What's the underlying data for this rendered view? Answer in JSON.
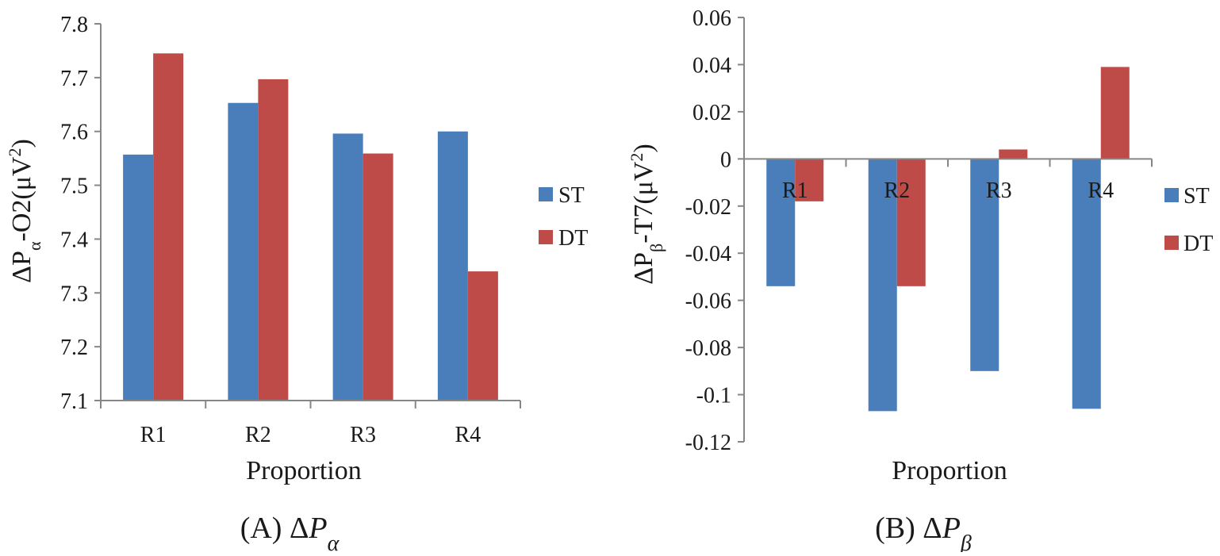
{
  "colors": {
    "ST": "#4a7ebb",
    "DT": "#be4b48",
    "axis": "#868686"
  },
  "legend": [
    {
      "label": "ST",
      "color": "#4a7ebb"
    },
    {
      "label": "DT",
      "color": "#be4b48"
    }
  ],
  "chart_data": [
    {
      "type": "bar",
      "caption_prefix": "(A) Δ",
      "caption_symbol": "P",
      "caption_sub": "α",
      "ylabel": {
        "base": "ΔP",
        "sub": "α",
        "rest": "-O2(μV",
        "sup": "2",
        "close": ")"
      },
      "xlabel": "Proportion",
      "categories": [
        "R1",
        "R2",
        "R3",
        "R4"
      ],
      "yticks": [
        "7.8",
        "7.7",
        "7.6",
        "7.5",
        "7.4",
        "7.3",
        "7.2",
        "7.1"
      ],
      "ylim": [
        7.1,
        7.8
      ],
      "series": [
        {
          "name": "ST",
          "values": [
            7.557,
            7.653,
            7.596,
            7.6
          ]
        },
        {
          "name": "DT",
          "values": [
            7.745,
            7.697,
            7.559,
            7.34
          ]
        }
      ],
      "legend_position": "right"
    },
    {
      "type": "bar",
      "caption_prefix": "(B) Δ",
      "caption_symbol": "P",
      "caption_sub": "β",
      "ylabel": {
        "base": "ΔP",
        "sub": "β",
        "rest": "-T7(μV",
        "sup": "2",
        "close": ")"
      },
      "xlabel": "Proportion",
      "categories": [
        "R1",
        "R2",
        "R3",
        "R4"
      ],
      "yticks": [
        "0.06",
        "0.04",
        "0.02",
        "0",
        "-0.02",
        "-0.04",
        "-0.06",
        "-0.08",
        "-0.1",
        "-0.12"
      ],
      "ylim": [
        -0.12,
        0.06
      ],
      "series": [
        {
          "name": "ST",
          "values": [
            -0.054,
            -0.107,
            -0.09,
            -0.106
          ]
        },
        {
          "name": "DT",
          "values": [
            -0.018,
            -0.054,
            0.004,
            0.039
          ]
        }
      ],
      "legend_position": "right"
    }
  ]
}
